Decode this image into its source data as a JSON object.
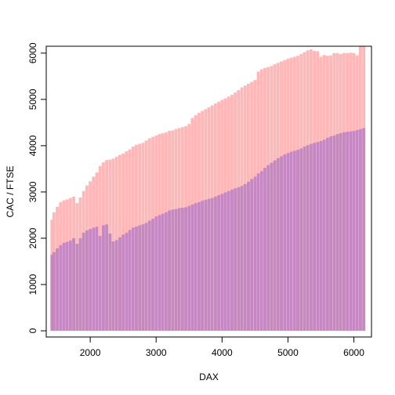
{
  "chart_data": {
    "type": "bar",
    "title": "",
    "xlabel": "DAX",
    "ylabel": "CAC / FTSE",
    "xlim": [
      1400,
      6200
    ],
    "ylim": [
      0,
      6100
    ],
    "xticks": [
      2000,
      3000,
      4000,
      5000,
      6000
    ],
    "yticks": [
      0,
      1000,
      2000,
      3000,
      4000,
      5000,
      6000
    ],
    "grid": false,
    "legend": "none",
    "series": [
      {
        "color": "#ffb3b3",
        "points": [
          [
            1420,
            2400
          ],
          [
            1450,
            2560
          ],
          [
            1500,
            2680
          ],
          [
            1550,
            2780
          ],
          [
            1600,
            2820
          ],
          [
            1650,
            2840
          ],
          [
            1700,
            2870
          ],
          [
            1750,
            2900
          ],
          [
            1800,
            2760
          ],
          [
            1850,
            2880
          ],
          [
            1900,
            3020
          ],
          [
            1950,
            3140
          ],
          [
            2000,
            3230
          ],
          [
            2050,
            3330
          ],
          [
            2100,
            3420
          ],
          [
            2150,
            3560
          ],
          [
            2200,
            3640
          ],
          [
            2250,
            3690
          ],
          [
            2300,
            3700
          ],
          [
            2350,
            3720
          ],
          [
            2400,
            3760
          ],
          [
            2450,
            3800
          ],
          [
            2500,
            3830
          ],
          [
            2550,
            3880
          ],
          [
            2600,
            3920
          ],
          [
            2650,
            3980
          ],
          [
            2700,
            4020
          ],
          [
            2750,
            4040
          ],
          [
            2800,
            4060
          ],
          [
            2850,
            4110
          ],
          [
            2900,
            4160
          ],
          [
            2950,
            4190
          ],
          [
            3000,
            4220
          ],
          [
            3050,
            4250
          ],
          [
            3100,
            4270
          ],
          [
            3150,
            4290
          ],
          [
            3200,
            4320
          ],
          [
            3250,
            4330
          ],
          [
            3300,
            4360
          ],
          [
            3350,
            4380
          ],
          [
            3400,
            4400
          ],
          [
            3450,
            4420
          ],
          [
            3500,
            4470
          ],
          [
            3550,
            4600
          ],
          [
            3600,
            4660
          ],
          [
            3650,
            4710
          ],
          [
            3700,
            4750
          ],
          [
            3750,
            4790
          ],
          [
            3800,
            4830
          ],
          [
            3850,
            4870
          ],
          [
            3900,
            4910
          ],
          [
            3950,
            4950
          ],
          [
            4000,
            4990
          ],
          [
            4050,
            5020
          ],
          [
            4100,
            5060
          ],
          [
            4150,
            5100
          ],
          [
            4200,
            5150
          ],
          [
            4250,
            5200
          ],
          [
            4300,
            5260
          ],
          [
            4350,
            5300
          ],
          [
            4400,
            5340
          ],
          [
            4450,
            5380
          ],
          [
            4500,
            5420
          ],
          [
            4550,
            5600
          ],
          [
            4600,
            5650
          ],
          [
            4650,
            5680
          ],
          [
            4700,
            5700
          ],
          [
            4750,
            5720
          ],
          [
            4800,
            5760
          ],
          [
            4850,
            5790
          ],
          [
            4900,
            5820
          ],
          [
            4950,
            5850
          ],
          [
            5000,
            5880
          ],
          [
            5050,
            5900
          ],
          [
            5100,
            5920
          ],
          [
            5150,
            5940
          ],
          [
            5200,
            5980
          ],
          [
            5250,
            6020
          ],
          [
            5300,
            6060
          ],
          [
            5350,
            6080
          ],
          [
            5400,
            6050
          ],
          [
            5450,
            6040
          ],
          [
            5500,
            5920
          ],
          [
            5550,
            5960
          ],
          [
            5600,
            5940
          ],
          [
            5650,
            5950
          ],
          [
            5700,
            6000
          ],
          [
            5750,
            6000
          ],
          [
            5800,
            5980
          ],
          [
            5850,
            6000
          ],
          [
            5900,
            6000
          ],
          [
            5950,
            6010
          ],
          [
            6000,
            6000
          ],
          [
            6050,
            5950
          ],
          [
            6100,
            6150
          ],
          [
            6150,
            6150
          ]
        ]
      },
      {
        "color": "#c285c2",
        "points": [
          [
            1420,
            1640
          ],
          [
            1450,
            1700
          ],
          [
            1500,
            1780
          ],
          [
            1550,
            1850
          ],
          [
            1600,
            1900
          ],
          [
            1650,
            1920
          ],
          [
            1700,
            1950
          ],
          [
            1750,
            2000
          ],
          [
            1800,
            1880
          ],
          [
            1850,
            2000
          ],
          [
            1900,
            2120
          ],
          [
            1950,
            2170
          ],
          [
            2000,
            2200
          ],
          [
            2050,
            2230
          ],
          [
            2100,
            2250
          ],
          [
            2150,
            2050
          ],
          [
            2200,
            2280
          ],
          [
            2250,
            2300
          ],
          [
            2300,
            2100
          ],
          [
            2350,
            1930
          ],
          [
            2400,
            1960
          ],
          [
            2450,
            2020
          ],
          [
            2500,
            2080
          ],
          [
            2550,
            2120
          ],
          [
            2600,
            2180
          ],
          [
            2650,
            2230
          ],
          [
            2700,
            2250
          ],
          [
            2750,
            2280
          ],
          [
            2800,
            2300
          ],
          [
            2850,
            2330
          ],
          [
            2900,
            2380
          ],
          [
            2950,
            2420
          ],
          [
            3000,
            2470
          ],
          [
            3050,
            2500
          ],
          [
            3100,
            2530
          ],
          [
            3150,
            2560
          ],
          [
            3200,
            2600
          ],
          [
            3250,
            2620
          ],
          [
            3300,
            2630
          ],
          [
            3350,
            2650
          ],
          [
            3400,
            2660
          ],
          [
            3450,
            2670
          ],
          [
            3500,
            2700
          ],
          [
            3550,
            2730
          ],
          [
            3600,
            2760
          ],
          [
            3650,
            2780
          ],
          [
            3700,
            2810
          ],
          [
            3750,
            2830
          ],
          [
            3800,
            2850
          ],
          [
            3850,
            2870
          ],
          [
            3900,
            2900
          ],
          [
            3950,
            2930
          ],
          [
            4000,
            2960
          ],
          [
            4050,
            2990
          ],
          [
            4100,
            3020
          ],
          [
            4150,
            3050
          ],
          [
            4200,
            3080
          ],
          [
            4250,
            3100
          ],
          [
            4300,
            3130
          ],
          [
            4350,
            3170
          ],
          [
            4400,
            3220
          ],
          [
            4450,
            3280
          ],
          [
            4500,
            3330
          ],
          [
            4550,
            3400
          ],
          [
            4600,
            3450
          ],
          [
            4650,
            3520
          ],
          [
            4700,
            3580
          ],
          [
            4750,
            3630
          ],
          [
            4800,
            3680
          ],
          [
            4850,
            3730
          ],
          [
            4900,
            3770
          ],
          [
            4950,
            3810
          ],
          [
            5000,
            3840
          ],
          [
            5050,
            3870
          ],
          [
            5100,
            3890
          ],
          [
            5150,
            3910
          ],
          [
            5200,
            3940
          ],
          [
            5250,
            3980
          ],
          [
            5300,
            4010
          ],
          [
            5350,
            4040
          ],
          [
            5400,
            4060
          ],
          [
            5450,
            4080
          ],
          [
            5500,
            4100
          ],
          [
            5550,
            4130
          ],
          [
            5600,
            4170
          ],
          [
            5650,
            4200
          ],
          [
            5700,
            4220
          ],
          [
            5750,
            4250
          ],
          [
            5800,
            4270
          ],
          [
            5850,
            4290
          ],
          [
            5900,
            4300
          ],
          [
            5950,
            4310
          ],
          [
            6000,
            4320
          ],
          [
            6050,
            4340
          ],
          [
            6100,
            4360
          ],
          [
            6150,
            4380
          ]
        ]
      }
    ]
  }
}
